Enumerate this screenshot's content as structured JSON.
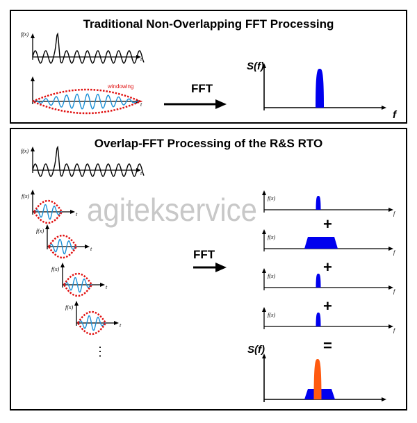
{
  "top_panel": {
    "title": "Traditional Non-Overlapping FFT Processing",
    "signal_y_label": "f(x)",
    "time_label": "t",
    "windowing_label": "windowing",
    "fft_label": "FFT",
    "spectrum_label": "S(f)",
    "freq_label": "f"
  },
  "bottom_panel": {
    "title": "Overlap-FFT Processing of the R&S RTO",
    "signal_y_label": "f(x)",
    "time_label": "t",
    "fft_label": "FFT",
    "freq_label": "f",
    "plus": "+",
    "equals": "=",
    "ellipsis": "⋮",
    "result_label": "S(f)"
  },
  "watermark": "agitekservice",
  "colors": {
    "signal": "#000000",
    "windowed": "#1a8fd6",
    "window": "#e01010",
    "spectrum": "#0000ee",
    "overlap_peak": "#ff5a10"
  }
}
